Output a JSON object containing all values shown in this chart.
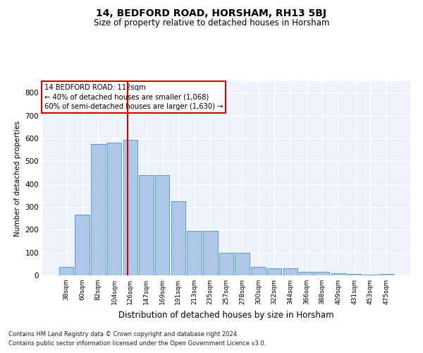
{
  "title": "14, BEDFORD ROAD, HORSHAM, RH13 5BJ",
  "subtitle": "Size of property relative to detached houses in Horsham",
  "xlabel": "Distribution of detached houses by size in Horsham",
  "ylabel": "Number of detached properties",
  "categories": [
    "38sqm",
    "60sqm",
    "82sqm",
    "104sqm",
    "126sqm",
    "147sqm",
    "169sqm",
    "191sqm",
    "213sqm",
    "235sqm",
    "257sqm",
    "278sqm",
    "300sqm",
    "322sqm",
    "344sqm",
    "366sqm",
    "388sqm",
    "409sqm",
    "431sqm",
    "453sqm",
    "475sqm"
  ],
  "values": [
    38,
    265,
    575,
    580,
    595,
    440,
    440,
    325,
    195,
    195,
    100,
    100,
    38,
    32,
    32,
    15,
    15,
    10,
    7,
    2,
    7
  ],
  "bar_color": "#aec6e8",
  "bar_edge_color": "#5a9fd4",
  "vline_x": 3.82,
  "vline_color": "#cc0000",
  "annotation_box_text": "14 BEDFORD ROAD: 112sqm\n← 40% of detached houses are smaller (1,068)\n60% of semi-detached houses are larger (1,630) →",
  "ylim": [
    0,
    850
  ],
  "yticks": [
    0,
    100,
    200,
    300,
    400,
    500,
    600,
    700,
    800
  ],
  "bg_color": "#eef2fa",
  "grid_color": "#ffffff",
  "footer_line1": "Contains HM Land Registry data © Crown copyright and database right 2024.",
  "footer_line2": "Contains public sector information licensed under the Open Government Licence v3.0."
}
